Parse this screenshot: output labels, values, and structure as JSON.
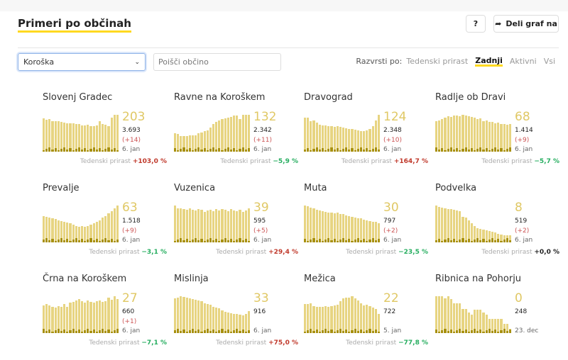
{
  "header": {
    "title": "Primeri po občinah",
    "help_label": "?",
    "share_label": "Deli graf na",
    "share_icon": "share-arrow-icon"
  },
  "filters": {
    "region_value": "Koroška",
    "search_placeholder": "Poišči občino"
  },
  "sort": {
    "label": "Razvrsti po:",
    "options": [
      "Tedenski prirast",
      "Zadnji",
      "Aktivni",
      "Vsi"
    ],
    "active": "Zadnji"
  },
  "colors": {
    "accent": "#ffd920",
    "bar": "#e3cd6b",
    "bar_new": "#a8900f",
    "increase": "#c0392b",
    "decrease": "#27ae60"
  },
  "weekly_label": "Tedenski prirast",
  "cards": [
    {
      "name": "Slovenj Gradec",
      "active": "203",
      "total": "3.693",
      "new": "(+14)",
      "date": "6. jan",
      "weekly": "+103,0 %",
      "trend": "up",
      "bars": [
        100,
        95,
        97,
        90,
        92,
        92,
        88,
        86,
        84,
        84,
        85,
        83,
        82,
        78,
        78,
        80,
        76,
        76,
        78,
        90,
        82,
        80,
        76,
        102,
        110,
        110
      ]
    },
    {
      "name": "Ravne na Koroškem",
      "active": "132",
      "total": "2.342",
      "new": "(+11)",
      "date": "6. jan",
      "weekly": "−5,9 %",
      "trend": "down",
      "bars": [
        50,
        48,
        42,
        42,
        42,
        44,
        45,
        45,
        50,
        52,
        56,
        58,
        65,
        75,
        80,
        85,
        88,
        90,
        92,
        95,
        98,
        98,
        88,
        100,
        100,
        100
      ]
    },
    {
      "name": "Dravograd",
      "active": "124",
      "total": "2.348",
      "new": "(+10)",
      "date": "6. jan",
      "weekly": "+164,7 %",
      "trend": "up",
      "bars": [
        92,
        92,
        82,
        84,
        78,
        74,
        72,
        72,
        70,
        70,
        68,
        70,
        68,
        66,
        64,
        62,
        62,
        60,
        58,
        56,
        55,
        58,
        62,
        70,
        85,
        100
      ]
    },
    {
      "name": "Radlje ob Dravi",
      "active": "68",
      "total": "1.414",
      "new": "(+9)",
      "date": "6. jan",
      "weekly": "−5,7 %",
      "trend": "down",
      "bars": [
        80,
        82,
        85,
        88,
        92,
        90,
        95,
        94,
        92,
        96,
        95,
        92,
        90,
        88,
        85,
        86,
        80,
        82,
        78,
        78,
        74,
        76,
        72,
        72,
        70,
        72
      ]
    },
    {
      "name": "Prevalje",
      "active": "63",
      "total": "1.518",
      "new": "(+9)",
      "date": "6. jan",
      "weekly": "−3,1 %",
      "trend": "down",
      "bars": [
        72,
        70,
        68,
        66,
        64,
        60,
        58,
        56,
        54,
        52,
        48,
        45,
        42,
        44,
        42,
        44,
        48,
        52,
        55,
        60,
        68,
        72,
        78,
        85,
        92,
        100
      ]
    },
    {
      "name": "Vuzenica",
      "active": "39",
      "total": "595",
      "new": "(+5)",
      "date": "6. jan",
      "weekly": "+29,4 %",
      "trend": "up",
      "bars": [
        100,
        92,
        92,
        90,
        88,
        92,
        88,
        86,
        90,
        88,
        82,
        86,
        88,
        84,
        90,
        86,
        90,
        88,
        84,
        90,
        86,
        84,
        88,
        82,
        86,
        92
      ]
    },
    {
      "name": "Muta",
      "active": "30",
      "total": "797",
      "new": "(+2)",
      "date": "6. jan",
      "weekly": "−23,5 %",
      "trend": "down",
      "bars": [
        100,
        98,
        95,
        92,
        88,
        86,
        84,
        82,
        80,
        80,
        78,
        80,
        76,
        76,
        74,
        72,
        70,
        68,
        66,
        65,
        62,
        60,
        58,
        56,
        55,
        52
      ]
    },
    {
      "name": "Podvelka",
      "active": "8",
      "total": "519",
      "new": "(+2)",
      "date": "6. jan",
      "weekly": "+0,0 %",
      "trend": "flat",
      "bars": [
        100,
        96,
        94,
        92,
        90,
        90,
        88,
        86,
        84,
        70,
        68,
        60,
        52,
        44,
        38,
        36,
        34,
        32,
        30,
        28,
        26,
        24,
        22,
        20,
        20,
        20
      ]
    },
    {
      "name": "Črna na Koroškem",
      "active": "27",
      "total": "660",
      "new": "(+1)",
      "date": "6. jan",
      "weekly": "−7,1 %",
      "trend": "down",
      "bars": [
        75,
        78,
        75,
        72,
        70,
        74,
        72,
        78,
        72,
        82,
        85,
        88,
        92,
        86,
        82,
        88,
        84,
        82,
        86,
        88,
        84,
        86,
        96,
        90,
        100,
        92
      ]
    },
    {
      "name": "Mislinja",
      "active": "33",
      "total": "916",
      "new": "",
      "date": "6. jan",
      "weekly": "+75,0 %",
      "trend": "up",
      "bars": [
        95,
        96,
        100,
        98,
        96,
        94,
        92,
        90,
        88,
        86,
        80,
        78,
        76,
        72,
        70,
        68,
        62,
        58,
        56,
        54,
        52,
        52,
        50,
        48,
        52,
        60
      ]
    },
    {
      "name": "Mežica",
      "active": "22",
      "total": "722",
      "new": "",
      "date": "5. jan",
      "weekly": "−77,8 %",
      "trend": "down",
      "bars": [
        75,
        75,
        76,
        70,
        68,
        68,
        68,
        70,
        68,
        70,
        72,
        74,
        82,
        90,
        92,
        92,
        95,
        90,
        84,
        76,
        72,
        74,
        70,
        66,
        62,
        50
      ]
    },
    {
      "name": "Ribnica na Pohorju",
      "active": "0",
      "total": "248",
      "new": "",
      "date": "23. dec",
      "weekly": "",
      "trend": "flat",
      "bars": [
        100,
        100,
        100,
        95,
        100,
        92,
        80,
        80,
        80,
        66,
        66,
        55,
        50,
        64,
        64,
        64,
        55,
        50,
        38,
        38,
        38,
        38,
        38,
        25,
        25,
        12
      ]
    }
  ]
}
